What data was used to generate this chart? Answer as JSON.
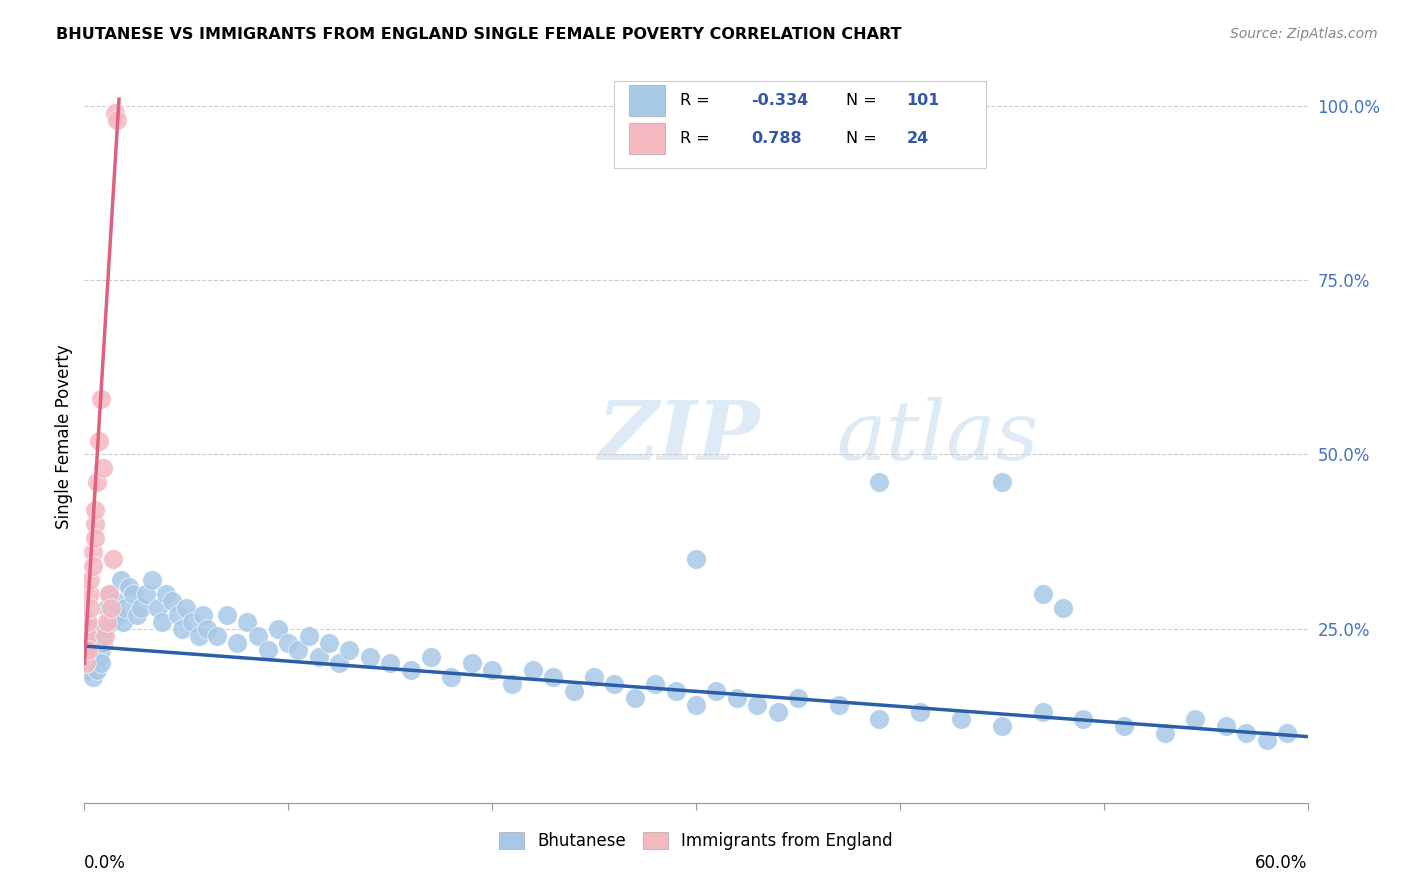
{
  "title": "BHUTANESE VS IMMIGRANTS FROM ENGLAND SINGLE FEMALE POVERTY CORRELATION CHART",
  "source": "Source: ZipAtlas.com",
  "ylabel": "Single Female Poverty",
  "xlim": [
    0.0,
    0.6
  ],
  "ylim": [
    0.0,
    1.05
  ],
  "yticks": [
    0.0,
    0.25,
    0.5,
    0.75,
    1.0
  ],
  "ytick_labels": [
    "",
    "25.0%",
    "50.0%",
    "75.0%",
    "100.0%"
  ],
  "blue_color": "#a8c8e8",
  "pink_color": "#f4b8c0",
  "blue_line_color": "#2b5ea7",
  "pink_line_color": "#e06080",
  "blue_label": "Bhutanese",
  "pink_label": "Immigrants from England",
  "blue_r": "-0.334",
  "blue_n": "101",
  "pink_r": "0.788",
  "pink_n": "24",
  "watermark_zip": "ZIP",
  "watermark_atlas": "atlas",
  "legend_r_n_color": "#3355aa",
  "blue_scatter_x": [
    0.001,
    0.001,
    0.002,
    0.002,
    0.002,
    0.003,
    0.003,
    0.003,
    0.004,
    0.004,
    0.004,
    0.005,
    0.005,
    0.006,
    0.006,
    0.007,
    0.007,
    0.008,
    0.008,
    0.009,
    0.01,
    0.011,
    0.012,
    0.013,
    0.015,
    0.016,
    0.018,
    0.019,
    0.02,
    0.022,
    0.024,
    0.026,
    0.028,
    0.03,
    0.033,
    0.036,
    0.038,
    0.04,
    0.043,
    0.046,
    0.048,
    0.05,
    0.053,
    0.056,
    0.058,
    0.06,
    0.065,
    0.07,
    0.075,
    0.08,
    0.085,
    0.09,
    0.095,
    0.1,
    0.105,
    0.11,
    0.115,
    0.12,
    0.125,
    0.13,
    0.14,
    0.15,
    0.16,
    0.17,
    0.18,
    0.19,
    0.2,
    0.21,
    0.22,
    0.23,
    0.24,
    0.25,
    0.26,
    0.27,
    0.28,
    0.29,
    0.3,
    0.31,
    0.32,
    0.33,
    0.34,
    0.35,
    0.37,
    0.39,
    0.41,
    0.43,
    0.45,
    0.47,
    0.49,
    0.51,
    0.53,
    0.545,
    0.56,
    0.57,
    0.58,
    0.59,
    0.39,
    0.45,
    0.47,
    0.3,
    0.48
  ],
  "blue_scatter_y": [
    0.22,
    0.2,
    0.24,
    0.21,
    0.19,
    0.23,
    0.2,
    0.25,
    0.22,
    0.18,
    0.21,
    0.2,
    0.23,
    0.22,
    0.19,
    0.21,
    0.24,
    0.22,
    0.2,
    0.23,
    0.25,
    0.28,
    0.3,
    0.26,
    0.29,
    0.27,
    0.32,
    0.26,
    0.28,
    0.31,
    0.3,
    0.27,
    0.28,
    0.3,
    0.32,
    0.28,
    0.26,
    0.3,
    0.29,
    0.27,
    0.25,
    0.28,
    0.26,
    0.24,
    0.27,
    0.25,
    0.24,
    0.27,
    0.23,
    0.26,
    0.24,
    0.22,
    0.25,
    0.23,
    0.22,
    0.24,
    0.21,
    0.23,
    0.2,
    0.22,
    0.21,
    0.2,
    0.19,
    0.21,
    0.18,
    0.2,
    0.19,
    0.17,
    0.19,
    0.18,
    0.16,
    0.18,
    0.17,
    0.15,
    0.17,
    0.16,
    0.14,
    0.16,
    0.15,
    0.14,
    0.13,
    0.15,
    0.14,
    0.12,
    0.13,
    0.12,
    0.11,
    0.13,
    0.12,
    0.11,
    0.1,
    0.12,
    0.11,
    0.1,
    0.09,
    0.1,
    0.46,
    0.46,
    0.3,
    0.35,
    0.28
  ],
  "pink_scatter_x": [
    0.001,
    0.001,
    0.002,
    0.002,
    0.002,
    0.003,
    0.003,
    0.003,
    0.004,
    0.004,
    0.005,
    0.005,
    0.005,
    0.006,
    0.007,
    0.008,
    0.009,
    0.01,
    0.011,
    0.012,
    0.013,
    0.014,
    0.015,
    0.016
  ],
  "pink_scatter_y": [
    0.22,
    0.2,
    0.24,
    0.22,
    0.26,
    0.3,
    0.28,
    0.32,
    0.36,
    0.34,
    0.4,
    0.38,
    0.42,
    0.46,
    0.52,
    0.58,
    0.48,
    0.24,
    0.26,
    0.3,
    0.28,
    0.35,
    0.99,
    0.98
  ],
  "pink_line_x0": 0.0,
  "pink_line_y0": 0.2,
  "pink_line_x1": 0.017,
  "pink_line_y1": 1.01,
  "blue_line_x0": 0.0,
  "blue_line_y0": 0.225,
  "blue_line_x1": 0.6,
  "blue_line_y1": 0.095
}
